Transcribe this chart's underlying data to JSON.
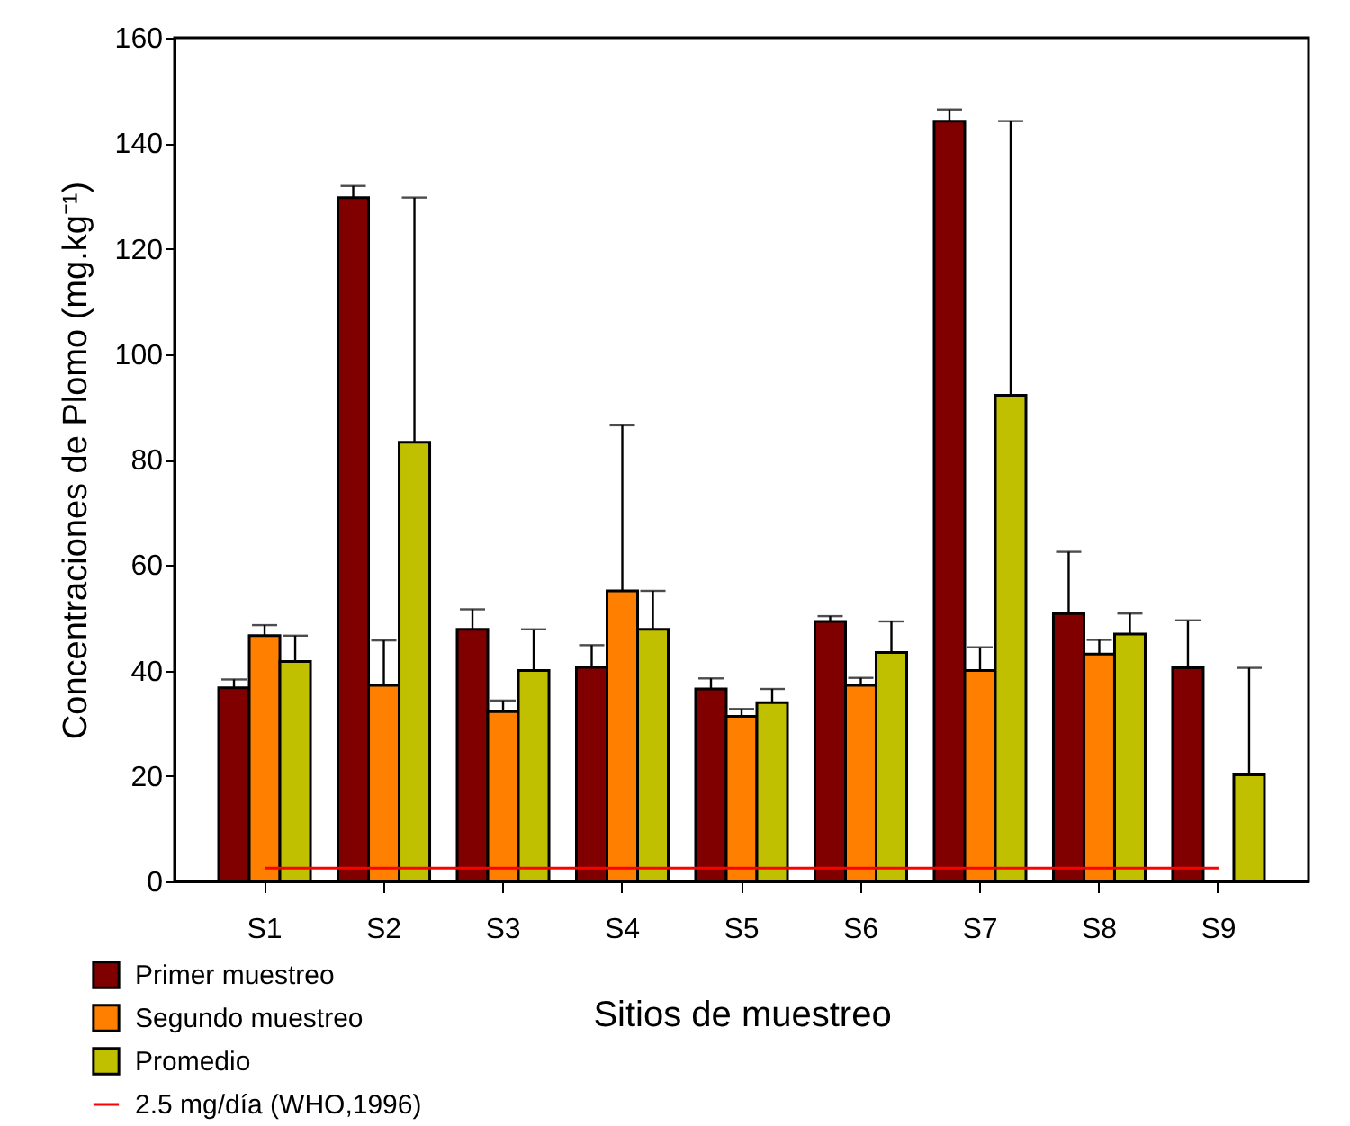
{
  "chart_data": {
    "type": "bar",
    "xlabel": "Sitios de muestreo",
    "ylabel": "Concentraciones de Plomo (mg.kg⁻¹)",
    "categories": [
      "S1",
      "S2",
      "S3",
      "S4",
      "S5",
      "S6",
      "S7",
      "S8",
      "S9"
    ],
    "series": [
      {
        "name": "Primer muestreo",
        "color": "#800000",
        "values": [
          36.7,
          129.7,
          47.8,
          40.6,
          36.5,
          49.3,
          144.2,
          50.8,
          40.5
        ],
        "errors": [
          [
            36.7,
            38.3
          ],
          [
            129.7,
            131.9
          ],
          [
            47.8,
            51.6
          ],
          [
            40.6,
            44.8
          ],
          [
            36.5,
            38.5
          ],
          [
            49.3,
            50.3
          ],
          [
            144.2,
            146.4
          ],
          [
            50.8,
            62.5
          ],
          [
            40.5,
            49.5
          ]
        ]
      },
      {
        "name": "Segundo muestreo",
        "color": "#ff8000",
        "values": [
          46.6,
          37.2,
          32.2,
          55.1,
          31.3,
          37.2,
          40.0,
          43.1,
          null
        ],
        "errors": [
          [
            46.6,
            48.6
          ],
          [
            37.2,
            45.7
          ],
          [
            32.2,
            34.3
          ],
          [
            55.1,
            86.5
          ],
          [
            31.3,
            32.7
          ],
          [
            37.2,
            38.6
          ],
          [
            40.0,
            44.4
          ],
          [
            43.1,
            45.8
          ],
          null
        ]
      },
      {
        "name": "Promedio",
        "color": "#c0c000",
        "values": [
          41.7,
          83.3,
          40.0,
          47.8,
          33.9,
          43.4,
          92.2,
          46.9,
          20.2
        ],
        "errors": [
          [
            41.7,
            46.6
          ],
          [
            83.3,
            129.7
          ],
          [
            40.0,
            47.8
          ],
          [
            47.8,
            55.1
          ],
          [
            33.9,
            36.5
          ],
          [
            43.4,
            49.3
          ],
          [
            92.2,
            144.2
          ],
          [
            46.9,
            50.8
          ],
          [
            20.2,
            40.5
          ]
        ]
      }
    ],
    "ylim": [
      0,
      160
    ],
    "yticks": [
      0,
      20,
      40,
      60,
      80,
      100,
      120,
      140,
      160
    ],
    "ref_lines": [
      {
        "axis": "y",
        "value": 2.5,
        "label": "2.5 mg/día (WHO,1996)",
        "color": "#ff0000"
      }
    ],
    "grid": false,
    "legend": "bottom left"
  }
}
